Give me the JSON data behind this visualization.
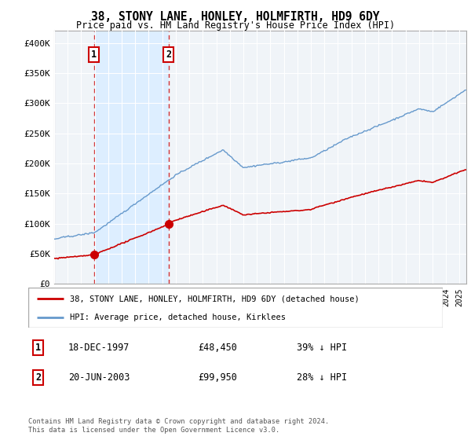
{
  "title": "38, STONY LANE, HONLEY, HOLMFIRTH, HD9 6DY",
  "subtitle": "Price paid vs. HM Land Registry's House Price Index (HPI)",
  "legend_line1": "38, STONY LANE, HONLEY, HOLMFIRTH, HD9 6DY (detached house)",
  "legend_line2": "HPI: Average price, detached house, Kirklees",
  "sale1_date": "18-DEC-1997",
  "sale1_price": 48450,
  "sale1_label": "1",
  "sale1_pct": "39% ↓ HPI",
  "sale2_date": "20-JUN-2003",
  "sale2_price": 99950,
  "sale2_label": "2",
  "sale2_pct": "28% ↓ HPI",
  "footer": "Contains HM Land Registry data © Crown copyright and database right 2024.\nThis data is licensed under the Open Government Licence v3.0.",
  "price_color": "#cc0000",
  "hpi_color": "#6699cc",
  "shade_color": "#ddeeff",
  "dashed_color": "#cc0000",
  "bg_color": "#f0f4f8",
  "ylim_max": 420000,
  "x_start_year": 1995,
  "x_end_year": 2025
}
